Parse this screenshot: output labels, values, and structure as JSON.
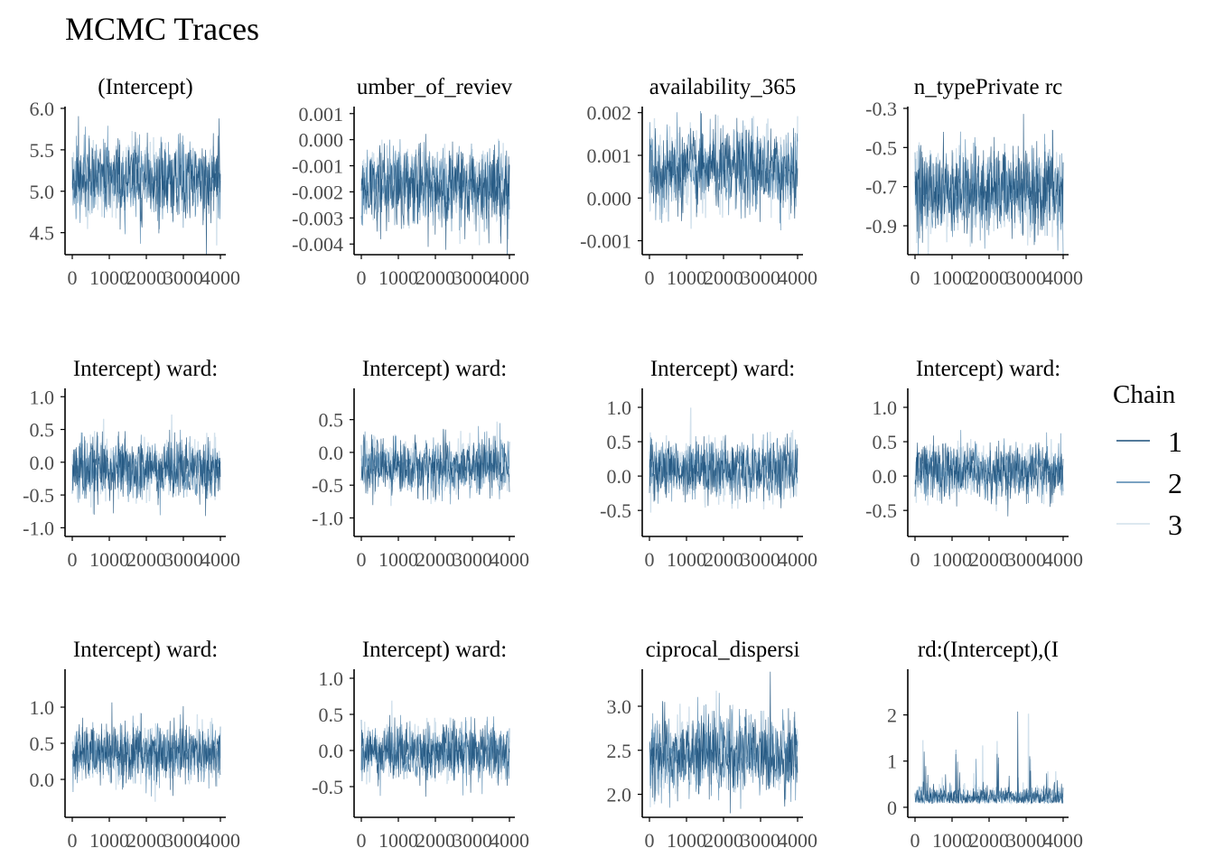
{
  "title": "MCMC Traces",
  "legend": {
    "title": "Chain",
    "placement": "right",
    "entries": [
      {
        "label": "1",
        "color": "#1a4f7a"
      },
      {
        "label": "2",
        "color": "#4f84ad"
      },
      {
        "label": "3",
        "color": "#d2e1ec"
      }
    ]
  },
  "chart_data": [
    {
      "type": "line",
      "title": "(Intercept)",
      "x": {
        "min": 0,
        "max": 4000,
        "ticks": [
          0,
          1000,
          2000,
          3000,
          4000
        ],
        "tick_labels": [
          "0",
          "1000",
          "2000",
          "3000",
          "4000"
        ]
      },
      "ylim": [
        4.3,
        6.0
      ],
      "yticks": [
        4.5,
        5.0,
        5.5,
        6.0
      ],
      "ytick_labels": [
        "4.5",
        "5.0",
        "5.5",
        "6.0"
      ],
      "center": 5.15,
      "spread": 0.42,
      "skew": 0,
      "series": [
        {
          "name": "1",
          "color": "#1a4f7a"
        },
        {
          "name": "2",
          "color": "#4f84ad"
        },
        {
          "name": "3",
          "color": "#d2e1ec"
        }
      ]
    },
    {
      "type": "line",
      "title": "umber_of_reviev",
      "x": {
        "min": 0,
        "max": 4000,
        "ticks": [
          0,
          1000,
          2000,
          3000,
          4000
        ],
        "tick_labels": [
          "0",
          "1000",
          "2000",
          "3000",
          "4000"
        ]
      },
      "ylim": [
        -0.0042,
        0.0012
      ],
      "yticks": [
        -0.004,
        -0.003,
        -0.002,
        -0.001,
        0.0,
        0.001
      ],
      "ytick_labels": [
        "-0.004",
        "-0.003",
        "-0.002",
        "-0.001",
        "0.000",
        "0.001"
      ],
      "center": -0.0018,
      "spread": 0.0014,
      "skew": 0,
      "series": [
        {
          "name": "1",
          "color": "#1a4f7a"
        },
        {
          "name": "2",
          "color": "#4f84ad"
        },
        {
          "name": "3",
          "color": "#d2e1ec"
        }
      ]
    },
    {
      "type": "line",
      "title": "availability_365",
      "x": {
        "min": 0,
        "max": 4000,
        "ticks": [
          0,
          1000,
          2000,
          3000,
          4000
        ],
        "tick_labels": [
          "0",
          "1000",
          "2000",
          "3000",
          "4000"
        ]
      },
      "ylim": [
        -0.0012,
        0.0021
      ],
      "yticks": [
        -0.001,
        0.0,
        0.001,
        0.002
      ],
      "ytick_labels": [
        "-0.001",
        "0.000",
        "0.001",
        "0.002"
      ],
      "center": 0.00065,
      "spread": 0.00085,
      "skew": 0,
      "series": [
        {
          "name": "1",
          "color": "#1a4f7a"
        },
        {
          "name": "2",
          "color": "#4f84ad"
        },
        {
          "name": "3",
          "color": "#d2e1ec"
        }
      ]
    },
    {
      "type": "line",
      "title": "n_typePrivate rc",
      "x": {
        "min": 0,
        "max": 4000,
        "ticks": [
          0,
          1000,
          2000,
          3000,
          4000
        ],
        "tick_labels": [
          "0",
          "1000",
          "2000",
          "3000",
          "4000"
        ]
      },
      "ylim": [
        -1.02,
        -0.3
      ],
      "yticks": [
        -0.9,
        -0.7,
        -0.5,
        -0.3
      ],
      "ytick_labels": [
        "-0.9",
        "-0.7",
        "-0.5",
        "-0.3"
      ],
      "center": -0.72,
      "spread": 0.2,
      "skew": 0,
      "series": [
        {
          "name": "1",
          "color": "#1a4f7a"
        },
        {
          "name": "2",
          "color": "#4f84ad"
        },
        {
          "name": "3",
          "color": "#d2e1ec"
        }
      ]
    },
    {
      "type": "line",
      "title": "Intercept) ward:",
      "x": {
        "min": 0,
        "max": 4000,
        "ticks": [
          0,
          1000,
          2000,
          3000,
          4000
        ],
        "tick_labels": [
          "0",
          "1000",
          "2000",
          "3000",
          "4000"
        ]
      },
      "ylim": [
        -1.05,
        1.1
      ],
      "yticks": [
        -1.0,
        -0.5,
        0.0,
        0.5,
        1.0
      ],
      "ytick_labels": [
        "-1.0",
        "-0.5",
        "0.0",
        "0.5",
        "1.0"
      ],
      "center": -0.1,
      "spread": 0.42,
      "skew": 0,
      "series": [
        {
          "name": "1",
          "color": "#1a4f7a"
        },
        {
          "name": "2",
          "color": "#4f84ad"
        },
        {
          "name": "3",
          "color": "#d2e1ec"
        }
      ]
    },
    {
      "type": "line",
      "title": "Intercept) ward:",
      "x": {
        "min": 0,
        "max": 4000,
        "ticks": [
          0,
          1000,
          2000,
          3000,
          4000
        ],
        "tick_labels": [
          "0",
          "1000",
          "2000",
          "3000",
          "4000"
        ]
      },
      "ylim": [
        -1.2,
        0.95
      ],
      "yticks": [
        -1.0,
        -0.5,
        0.0,
        0.5
      ],
      "ytick_labels": [
        "-1.0",
        "-0.5",
        "0.0",
        "0.5"
      ],
      "center": -0.22,
      "spread": 0.38,
      "skew": 0,
      "series": [
        {
          "name": "1",
          "color": "#1a4f7a"
        },
        {
          "name": "2",
          "color": "#4f84ad"
        },
        {
          "name": "3",
          "color": "#d2e1ec"
        }
      ]
    },
    {
      "type": "line",
      "title": "Intercept) ward:",
      "x": {
        "min": 0,
        "max": 4000,
        "ticks": [
          0,
          1000,
          2000,
          3000,
          4000
        ],
        "tick_labels": [
          "0",
          "1000",
          "2000",
          "3000",
          "4000"
        ]
      },
      "ylim": [
        -0.8,
        1.25
      ],
      "yticks": [
        -0.5,
        0.0,
        0.5,
        1.0
      ],
      "ytick_labels": [
        "-0.5",
        "0.0",
        "0.5",
        "1.0"
      ],
      "center": 0.1,
      "spread": 0.38,
      "skew": 0,
      "series": [
        {
          "name": "1",
          "color": "#1a4f7a"
        },
        {
          "name": "2",
          "color": "#4f84ad"
        },
        {
          "name": "3",
          "color": "#d2e1ec"
        }
      ]
    },
    {
      "type": "line",
      "title": "Intercept) ward:",
      "x": {
        "min": 0,
        "max": 4000,
        "ticks": [
          0,
          1000,
          2000,
          3000,
          4000
        ],
        "tick_labels": [
          "0",
          "1000",
          "2000",
          "3000",
          "4000"
        ]
      },
      "ylim": [
        -0.8,
        1.25
      ],
      "yticks": [
        -0.5,
        0.0,
        0.5,
        1.0
      ],
      "ytick_labels": [
        "-0.5",
        "0.0",
        "0.5",
        "1.0"
      ],
      "center": 0.07,
      "spread": 0.36,
      "skew": 0,
      "series": [
        {
          "name": "1",
          "color": "#1a4f7a"
        },
        {
          "name": "2",
          "color": "#4f84ad"
        },
        {
          "name": "3",
          "color": "#d2e1ec"
        }
      ]
    },
    {
      "type": "line",
      "title": "Intercept) ward:",
      "x": {
        "min": 0,
        "max": 4000,
        "ticks": [
          0,
          1000,
          2000,
          3000,
          4000
        ],
        "tick_labels": [
          "0",
          "1000",
          "2000",
          "3000",
          "4000"
        ]
      },
      "ylim": [
        -0.45,
        1.5
      ],
      "yticks": [
        0.0,
        0.5,
        1.0
      ],
      "ytick_labels": [
        "0.0",
        "0.5",
        "1.0"
      ],
      "center": 0.36,
      "spread": 0.36,
      "skew": 0,
      "series": [
        {
          "name": "1",
          "color": "#1a4f7a"
        },
        {
          "name": "2",
          "color": "#4f84ad"
        },
        {
          "name": "3",
          "color": "#d2e1ec"
        }
      ]
    },
    {
      "type": "line",
      "title": "Intercept) ward:",
      "x": {
        "min": 0,
        "max": 4000,
        "ticks": [
          0,
          1000,
          2000,
          3000,
          4000
        ],
        "tick_labels": [
          "0",
          "1000",
          "2000",
          "3000",
          "4000"
        ]
      },
      "ylim": [
        -0.85,
        1.1
      ],
      "yticks": [
        -0.5,
        0.0,
        0.5,
        1.0
      ],
      "ytick_labels": [
        "-0.5",
        "0.0",
        "0.5",
        "1.0"
      ],
      "center": -0.02,
      "spread": 0.36,
      "skew": 0,
      "series": [
        {
          "name": "1",
          "color": "#1a4f7a"
        },
        {
          "name": "2",
          "color": "#4f84ad"
        },
        {
          "name": "3",
          "color": "#d2e1ec"
        }
      ]
    },
    {
      "type": "line",
      "title": "ciprocal_dispersi",
      "x": {
        "min": 0,
        "max": 4000,
        "ticks": [
          0,
          1000,
          2000,
          3000,
          4000
        ],
        "tick_labels": [
          "0",
          "1000",
          "2000",
          "3000",
          "4000"
        ]
      },
      "ylim": [
        1.8,
        3.4
      ],
      "yticks": [
        2.0,
        2.5,
        3.0
      ],
      "ytick_labels": [
        "2.0",
        "2.5",
        "3.0"
      ],
      "center": 2.45,
      "spread": 0.4,
      "skew": 0,
      "series": [
        {
          "name": "1",
          "color": "#1a4f7a"
        },
        {
          "name": "2",
          "color": "#4f84ad"
        },
        {
          "name": "3",
          "color": "#d2e1ec"
        }
      ]
    },
    {
      "type": "line",
      "title": "rd:(Intercept),(I",
      "x": {
        "min": 0,
        "max": 4000,
        "ticks": [
          0,
          1000,
          2000,
          3000,
          4000
        ],
        "tick_labels": [
          "0",
          "1000",
          "2000",
          "3000",
          "4000"
        ]
      },
      "ylim": [
        -0.1,
        2.95
      ],
      "yticks": [
        0,
        1,
        2
      ],
      "ytick_labels": [
        "0",
        "1",
        "2"
      ],
      "center": 0.18,
      "spread": 0.16,
      "skew": 1,
      "series": [
        {
          "name": "1",
          "color": "#1a4f7a"
        },
        {
          "name": "2",
          "color": "#4f84ad"
        },
        {
          "name": "3",
          "color": "#d2e1ec"
        }
      ]
    }
  ]
}
